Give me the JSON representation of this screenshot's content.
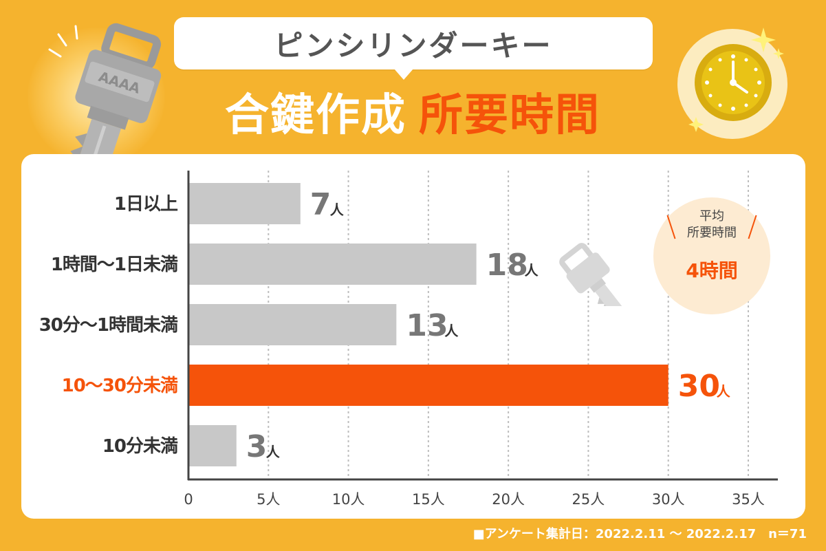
{
  "header": {
    "bubble_text": "ピンシリンダーキー",
    "title_white": "合鍵作成",
    "title_orange": "所要時間"
  },
  "key_engraving": "AAAA",
  "average": {
    "label_line1": "平均",
    "label_line2": "所要時間",
    "value": "4時間"
  },
  "footer": "■アンケート集計日：2022.2.11 〜 2022.2.17　n＝71",
  "colors": {
    "background": "#f5b32e",
    "accent": "#f5530a",
    "bar_default": "#c8c8c8",
    "label_dark": "#333333",
    "value_gray": "#777777"
  },
  "chart_data": {
    "type": "bar",
    "orientation": "horizontal",
    "categories": [
      "1日以上",
      "1時間〜1日未満",
      "30分〜1時間未満",
      "10〜30分未満",
      "10分未満"
    ],
    "values": [
      7,
      18,
      13,
      30,
      3
    ],
    "value_labels": [
      "7",
      "18",
      "13",
      "30",
      "3"
    ],
    "unit": "人",
    "highlight_index": 3,
    "xlim": [
      0,
      35
    ],
    "x_ticks": [
      0,
      5,
      10,
      15,
      20,
      25,
      30,
      35
    ],
    "x_tick_labels": [
      "0",
      "5人",
      "10人",
      "15人",
      "20人",
      "25人",
      "30人",
      "35人"
    ],
    "grid": "vertical dotted"
  }
}
